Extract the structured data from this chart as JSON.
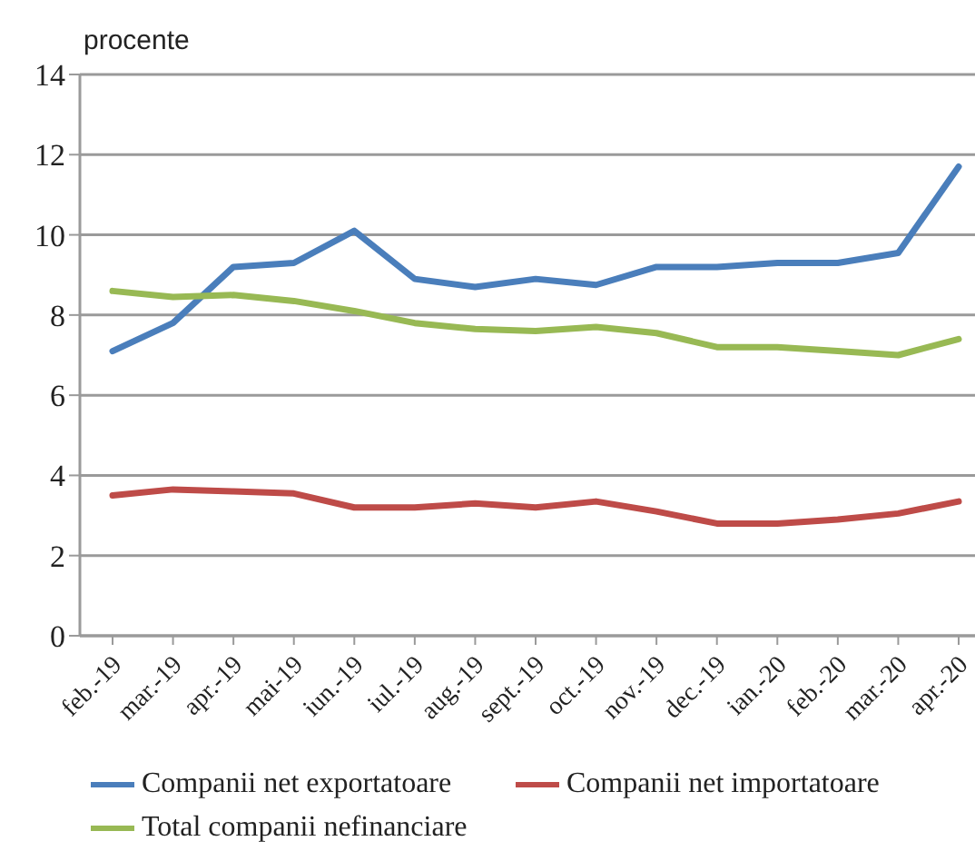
{
  "chart_data": {
    "type": "line",
    "ylabel": "procente",
    "categories": [
      "feb.-19",
      "mar.-19",
      "apr.-19",
      "mai-19",
      "iun.-19",
      "iul.-19",
      "aug.-19",
      "sept.-19",
      "oct.-19",
      "nov.-19",
      "dec.-19",
      "ian.-20",
      "feb.-20",
      "mar.-20",
      "apr.-20"
    ],
    "series": [
      {
        "name": "Companii net exportatoare",
        "color": "#4a7ebb",
        "values": [
          7.1,
          7.8,
          9.2,
          9.3,
          10.1,
          8.9,
          8.7,
          8.9,
          8.75,
          9.2,
          9.2,
          9.3,
          9.3,
          9.55,
          11.7
        ]
      },
      {
        "name": "Companii net importatoare",
        "color": "#be4b48",
        "values": [
          3.5,
          3.65,
          3.6,
          3.55,
          3.2,
          3.2,
          3.3,
          3.2,
          3.35,
          3.1,
          2.8,
          2.8,
          2.9,
          3.05,
          3.35
        ]
      },
      {
        "name": "Total companii nefinanciare",
        "color": "#98b954",
        "values": [
          8.6,
          8.45,
          8.5,
          8.35,
          8.1,
          7.8,
          7.65,
          7.6,
          7.7,
          7.55,
          7.2,
          7.2,
          7.1,
          7.0,
          7.4
        ]
      }
    ],
    "ylim": [
      0,
      14
    ],
    "yticks": [
      0,
      2,
      4,
      6,
      8,
      10,
      12,
      14
    ],
    "grid": "y",
    "legend": "bottom",
    "marker": "none",
    "line_style": "solid"
  }
}
